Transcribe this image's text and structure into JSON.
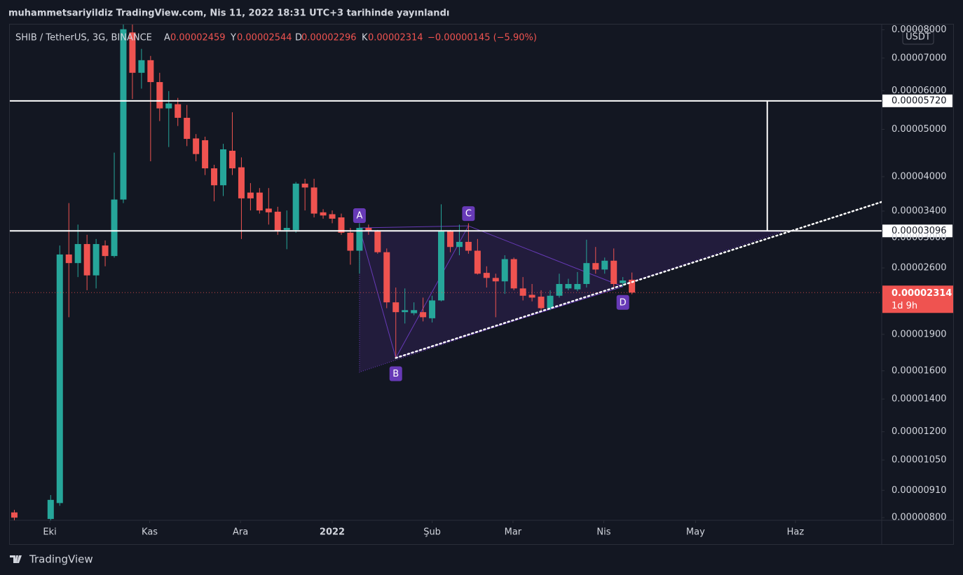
{
  "header": {
    "publish_line": "muhammetsariyildiz TradingView.com, Nis 11, 2022 18:31 UTC+3 tarihinde yayınlandı"
  },
  "footer": {
    "brand": "TradingView"
  },
  "chart_data": {
    "type": "candlestick",
    "title": "SHIB / TetherUS, 3G, BINANCE",
    "ohlc_labels": [
      "A",
      "Y",
      "D",
      "K"
    ],
    "change": "−0.00000145 (−5.90%)",
    "currency": "USDT",
    "countdown": "1d 9h",
    "log_scale": true,
    "grid": false,
    "up_color": "#26a69a",
    "down_color": "#ef5350",
    "x": [
      0,
      4,
      5,
      6,
      7,
      8,
      9,
      10,
      11,
      12,
      13,
      14,
      15,
      16,
      17,
      18,
      19,
      20,
      21,
      22,
      23,
      24,
      25,
      26,
      27,
      28,
      29,
      30,
      31,
      32,
      33,
      34,
      35,
      36,
      37,
      38,
      39,
      40,
      41,
      42,
      43,
      44,
      45,
      46,
      47,
      48,
      49,
      50,
      51,
      52,
      53,
      54,
      55,
      56,
      57,
      58,
      59,
      60,
      61,
      62,
      63,
      64,
      65,
      66,
      67,
      68
    ],
    "open": [
      8.2e-06,
      7.95e-06,
      8.57e-06,
      2.77e-05,
      2.66e-05,
      2.91e-05,
      2.51e-05,
      2.89e-05,
      2.75e-05,
      3.59e-05,
      7.9e-05,
      6.53e-05,
      6.93e-05,
      6.25e-05,
      5.52e-05,
      5.63e-05,
      5.28e-05,
      4.79e-05,
      4.75e-05,
      4.16e-05,
      3.84e-05,
      4.52e-05,
      4.18e-05,
      3.71e-05,
      3.71e-05,
      3.44e-05,
      3.39e-05,
      3.11e-05,
      3.11e-05,
      3.87e-05,
      3.8e-05,
      3.38e-05,
      3.35e-05,
      3.3e-05,
      3.07e-05,
      2.82e-05,
      3.14e-05,
      3.09e-05,
      2.8e-05,
      2.21e-05,
      2.11e-05,
      2.1e-05,
      2.11e-05,
      2.05e-05,
      2.23e-05,
      3.09e-05,
      2.87e-05,
      2.94e-05,
      2.82e-05,
      2.54e-05,
      2.48e-05,
      2.44e-05,
      2.71e-05,
      2.36e-05,
      2.29e-05,
      2.27e-05,
      2.15e-05,
      2.28e-05,
      2.36e-05,
      2.35e-05,
      2.41e-05,
      2.66e-05,
      2.58e-05,
      2.69e-05,
      2.42e-05,
      2.459e-05
    ],
    "high": [
      8.3e-06,
      8.9e-06,
      2.89e-05,
      3.53e-05,
      3.19e-05,
      3.04e-05,
      2.98e-05,
      2.96e-05,
      4.48e-05,
      8.3e-05,
      8.3e-05,
      7.31e-05,
      7.07e-05,
      6.53e-05,
      5.99e-05,
      5.8e-05,
      5.61e-05,
      4.89e-05,
      4.83e-05,
      4.23e-05,
      4.67e-05,
      5.42e-05,
      4.38e-05,
      3.88e-05,
      3.79e-05,
      3.79e-05,
      3.47e-05,
      3.41e-05,
      3.9e-05,
      3.96e-05,
      3.96e-05,
      3.43e-05,
      3.41e-05,
      3.36e-05,
      3.14e-05,
      3.21e-05,
      3.19e-05,
      3.11e-05,
      2.85e-05,
      2.37e-05,
      2.36e-05,
      2.21e-05,
      2.26e-05,
      2.28e-05,
      3.51e-05,
      3.11e-05,
      3.19e-05,
      3.21e-05,
      2.98e-05,
      2.62e-05,
      2.53e-05,
      2.76e-05,
      2.73e-05,
      2.49e-05,
      2.41e-05,
      2.34e-05,
      2.34e-05,
      2.53e-05,
      2.47e-05,
      2.55e-05,
      2.97e-05,
      2.87e-05,
      2.73e-05,
      2.85e-05,
      2.49e-05,
      2.544e-05
    ],
    "low": [
      7.9e-06,
      7.8e-06,
      8.46e-06,
      2.06e-05,
      2.49e-05,
      2.34e-05,
      2.36e-05,
      2.62e-05,
      2.73e-05,
      3.53e-05,
      5.77e-05,
      6.06e-05,
      4.3e-05,
      5.2e-05,
      4.6e-05,
      5.08e-05,
      4.62e-05,
      4.3e-05,
      4.03e-05,
      3.56e-05,
      3.65e-05,
      4.03e-05,
      2.98e-05,
      3.41e-05,
      3.36e-05,
      3.19e-05,
      3.04e-05,
      2.84e-05,
      3.07e-05,
      3.41e-05,
      3.3e-05,
      3.28e-05,
      3.21e-05,
      3.04e-05,
      2.64e-05,
      2.53e-05,
      3.04e-05,
      2.78e-05,
      2.15e-05,
      1.7e-05,
      2e-05,
      2.08e-05,
      2.02e-05,
      2.01e-05,
      2.22e-05,
      2.8e-05,
      2.76e-05,
      2.78e-05,
      2.52e-05,
      2.37e-05,
      2.06e-05,
      2.3e-05,
      2.34e-05,
      2.23e-05,
      2.22e-05,
      2.13e-05,
      2.13e-05,
      2.26e-05,
      2.34e-05,
      2.33e-05,
      2.37e-05,
      2.53e-05,
      2.53e-05,
      2.37e-05,
      2.38e-05,
      2.296e-05
    ],
    "close": [
      8e-06,
      8.7e-06,
      2.77e-05,
      2.66e-05,
      2.91e-05,
      2.51e-05,
      2.91e-05,
      2.75e-05,
      3.59e-05,
      8.02e-05,
      6.53e-05,
      6.93e-05,
      6.25e-05,
      5.52e-05,
      5.65e-05,
      5.28e-05,
      4.78e-05,
      4.45e-05,
      4.16e-05,
      3.84e-05,
      4.55e-05,
      4.16e-05,
      3.61e-05,
      3.61e-05,
      3.41e-05,
      3.38e-05,
      3.09e-05,
      3.14e-05,
      3.87e-05,
      3.8e-05,
      3.36e-05,
      3.33e-05,
      3.28e-05,
      3.07e-05,
      2.82e-05,
      3.14e-05,
      3.09e-05,
      2.8e-05,
      2.21e-05,
      2.11e-05,
      2.13e-05,
      2.13e-05,
      2.06e-05,
      2.23e-05,
      3.09e-05,
      2.87e-05,
      2.94e-05,
      2.82e-05,
      2.53e-05,
      2.48e-05,
      2.44e-05,
      2.71e-05,
      2.36e-05,
      2.28e-05,
      2.26e-05,
      2.15e-05,
      2.28e-05,
      2.41e-05,
      2.41e-05,
      2.41e-05,
      2.66e-05,
      2.58e-05,
      2.69e-05,
      2.41e-05,
      2.45e-05,
      2.314e-05
    ],
    "xlim": [
      -0.5,
      95.5
    ],
    "xticks": [
      {
        "value": 3.9,
        "label": "Eki"
      },
      {
        "value": 14.9,
        "label": "Kas"
      },
      {
        "value": 24.9,
        "label": "Ara"
      },
      {
        "value": 35,
        "label": "2022"
      },
      {
        "value": 46,
        "label": "Şub"
      },
      {
        "value": 54.9,
        "label": "Mar"
      },
      {
        "value": 64.9,
        "label": "Nis"
      },
      {
        "value": 75,
        "label": "May"
      },
      {
        "value": 86,
        "label": "Haz"
      }
    ],
    "ylim": [
      7.9e-06,
      8.2e-05
    ],
    "yticks": [
      {
        "value": 8e-05,
        "label": "0.00008000"
      },
      {
        "value": 7e-05,
        "label": "0.00007000"
      },
      {
        "value": 6e-05,
        "label": "0.00006000"
      },
      {
        "value": 5e-05,
        "label": "0.00005000"
      },
      {
        "value": 4e-05,
        "label": "0.00004000"
      },
      {
        "value": 3.4e-05,
        "label": "0.00003400"
      },
      {
        "value": 3e-05,
        "label": "0.00003000"
      },
      {
        "value": 2.6e-05,
        "label": "0.00002600"
      },
      {
        "value": 1.9e-05,
        "label": "0.00001900"
      },
      {
        "value": 1.6e-05,
        "label": "0.00001600"
      },
      {
        "value": 1.4e-05,
        "label": "0.00001400"
      },
      {
        "value": 1.2e-05,
        "label": "0.00001200"
      },
      {
        "value": 1.05e-05,
        "label": "0.00001050"
      },
      {
        "value": 9.1e-06,
        "label": "0.00000910"
      },
      {
        "value": 8e-06,
        "label": "0.00000800"
      }
    ],
    "hlines": [
      {
        "value": 5.72e-05,
        "label": "0.00005720"
      },
      {
        "value": 3.096e-05,
        "label": "0.00003096"
      }
    ],
    "vertical_line": {
      "x": 82.9,
      "y": [
        5.72e-05,
        3.096e-05
      ]
    },
    "pattern": [
      {
        "label": "A",
        "x": 38,
        "y": 3.14e-05
      },
      {
        "label": "B",
        "x": 42,
        "y": 1.7e-05
      },
      {
        "label": "C",
        "x": 50,
        "y": 3.17e-05
      },
      {
        "label": "D",
        "x": 67,
        "y": 2.38e-05
      }
    ],
    "pattern_color": "#673ab7",
    "triangle": {
      "x": [
        38,
        84.8,
        38
      ],
      "y": [
        3.096e-05,
        3.096e-05,
        1.59e-05
      ]
    },
    "trendline": {
      "x": [
        42,
        95.5
      ],
      "y": [
        1.7e-05,
        3.55e-05
      ]
    }
  }
}
